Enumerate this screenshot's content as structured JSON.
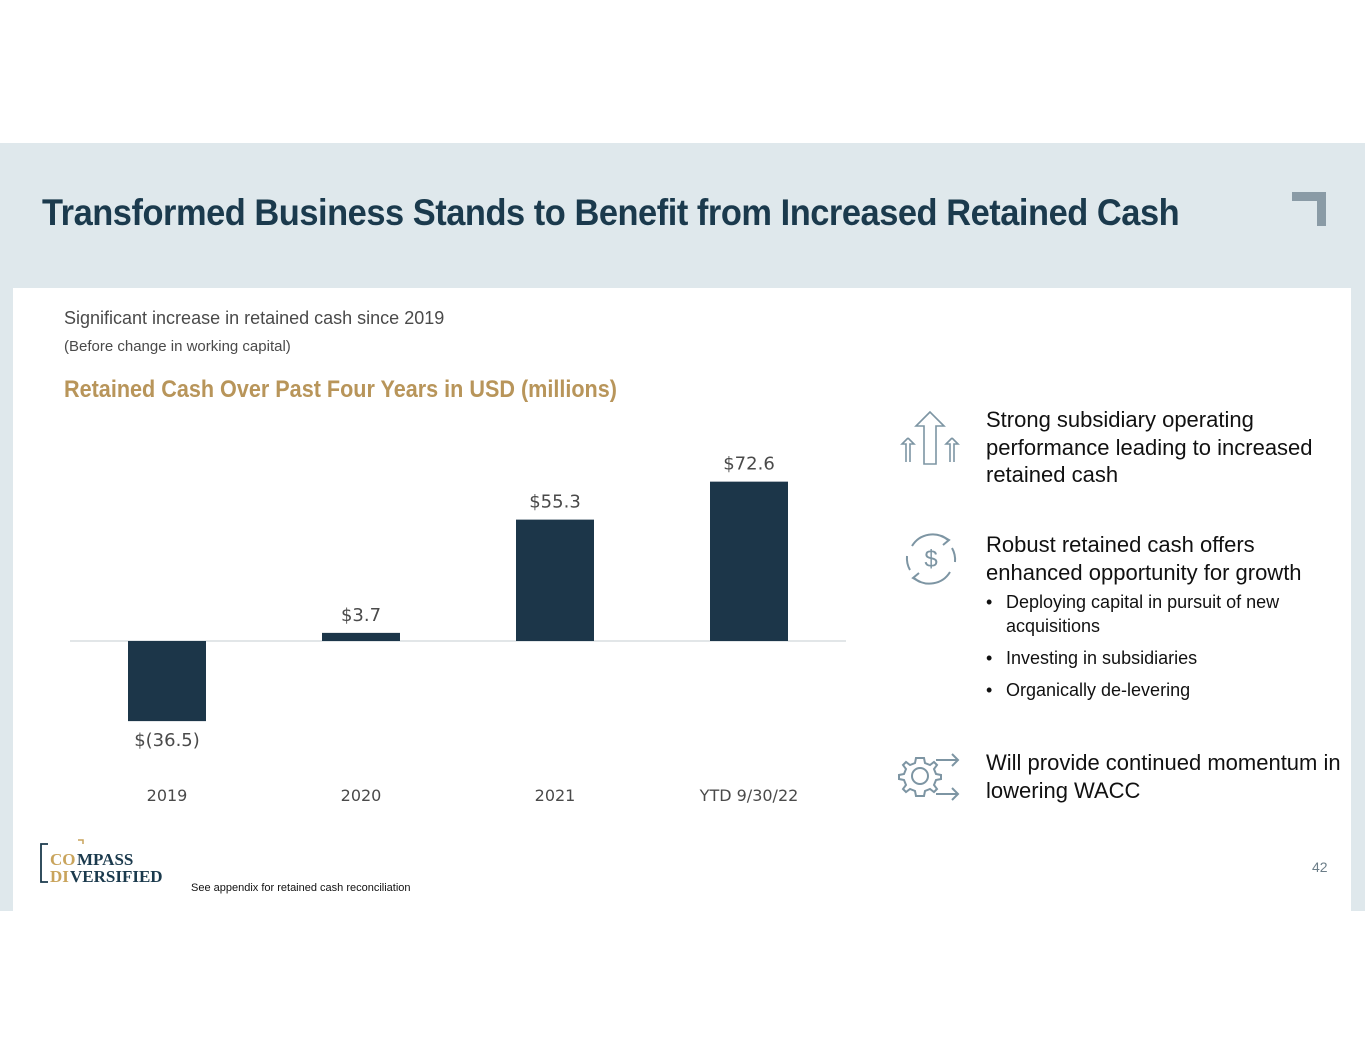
{
  "header": {
    "title": "Transformed Business Stands to Benefit from Increased Retained Cash"
  },
  "left": {
    "subtitle": "Significant increase in retained cash since 2019",
    "subnote": "(Before change in working capital)"
  },
  "chart_data": {
    "type": "bar",
    "title": "Retained Cash Over Past Four Years in USD (millions)",
    "categories": [
      "2019",
      "2020",
      "2021",
      "YTD 9/30/22"
    ],
    "values": [
      -36.5,
      3.7,
      55.3,
      72.6
    ],
    "data_labels": [
      "$(36.5)",
      "$3.7",
      "$55.3",
      "$72.6"
    ],
    "xlabel": "",
    "ylabel": "",
    "grid": false,
    "bar_color": "#1c3649"
  },
  "right": {
    "points": [
      {
        "icon": "growth-arrows-icon",
        "text": "Strong subsidiary operating performance leading to increased retained cash"
      },
      {
        "icon": "dollar-cycle-icon",
        "text": "Robust retained cash offers enhanced opportunity for growth",
        "sub_items": [
          "Deploying capital in pursuit of new acquisitions",
          "Investing in subsidiaries",
          "Organically de-levering"
        ]
      },
      {
        "icon": "gear-arrows-icon",
        "text": "Will provide continued momentum in lowering WACC"
      }
    ]
  },
  "footer": {
    "logo_text_line1": "COMPASS",
    "logo_text_line2": "DIVERSIFIED",
    "footnote": "See appendix for retained cash reconciliation",
    "page_number": "42"
  },
  "colors": {
    "navy": "#1b3a4d",
    "gold": "#b8955a",
    "band": "#dfe8ec",
    "icon": "#7d95a3"
  }
}
